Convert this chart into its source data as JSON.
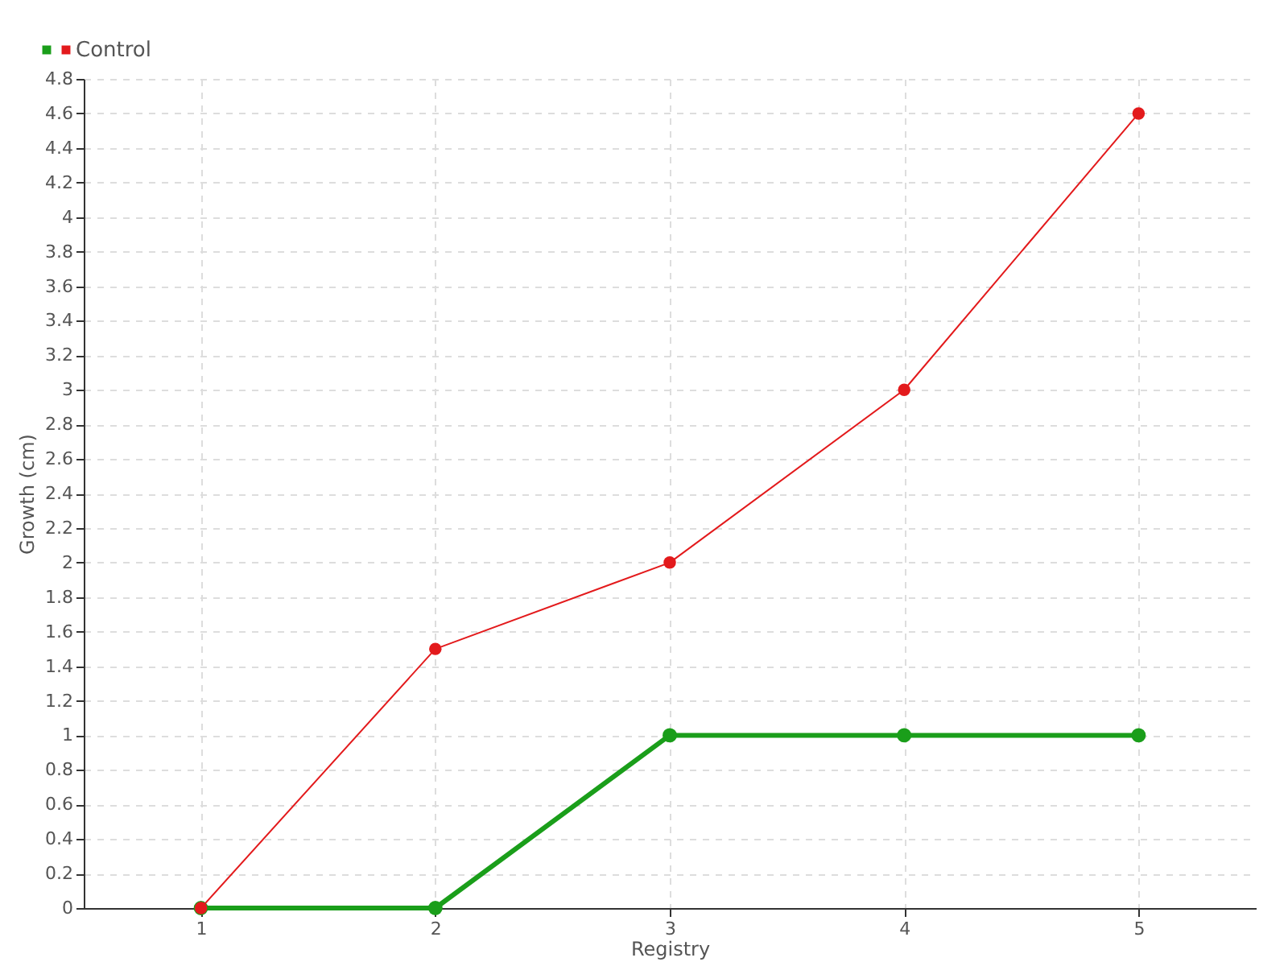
{
  "chart_data": {
    "type": "line",
    "xlabel": "Registry",
    "ylabel": "Growth (cm)",
    "x": [
      1,
      2,
      3,
      4,
      5
    ],
    "series": [
      {
        "color": "#1a9e1a",
        "values": [
          0,
          0,
          1,
          1,
          1
        ]
      },
      {
        "name": "Control",
        "color": "#e31a1c",
        "values": [
          0,
          1.5,
          2,
          3,
          4.6
        ]
      }
    ],
    "xlim": [
      0.5,
      5.5
    ],
    "xticks": [
      1,
      2,
      3,
      4,
      5
    ],
    "ylim": [
      0,
      4.8
    ],
    "yticks": [
      0,
      0.2,
      0.4,
      0.6,
      0.8,
      1,
      1.2,
      1.4,
      1.6,
      1.8,
      2,
      2.2,
      2.4,
      2.6,
      2.8,
      3,
      3.2,
      3.4,
      3.6,
      3.8,
      4,
      4.2,
      4.4,
      4.6,
      4.8
    ],
    "grid": true,
    "legend": "top left",
    "marker": "circle",
    "line_style": "solid"
  }
}
